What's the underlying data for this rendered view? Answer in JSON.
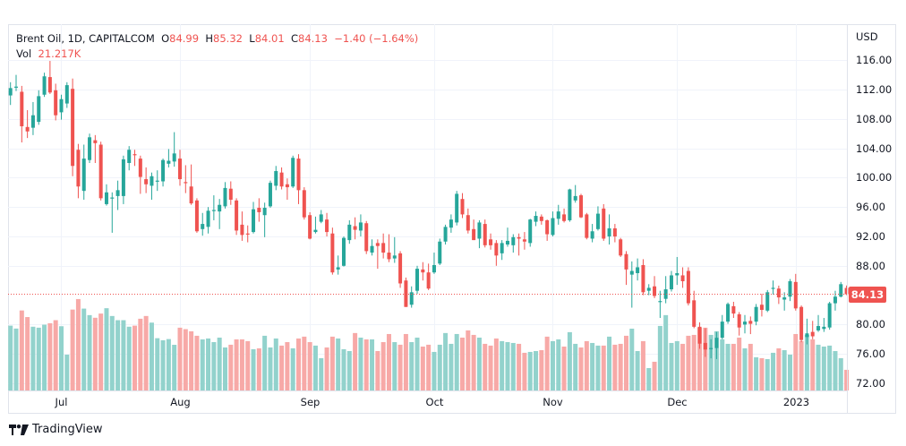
{
  "legend": {
    "symbol": "Brent Oil, 1D, CAPITALCOM",
    "o_label": "O",
    "o_value": "84.99",
    "h_label": "H",
    "h_value": "85.32",
    "l_label": "L",
    "l_value": "84.01",
    "c_label": "C",
    "c_value": "84.13",
    "change": "−1.40 (−1.64%)",
    "vol_label": "Vol",
    "vol_value": "21.217K"
  },
  "brand": "TradingView",
  "colors": {
    "up": "#26a69a",
    "down": "#ef5350",
    "up_vol": "#92d2cc",
    "down_vol": "#f7a9a7",
    "grid": "#f0f3fa"
  },
  "chart_data": {
    "type": "candlestick",
    "title": "Brent Oil, 1D, CAPITALCOM",
    "currency": "USD",
    "ylim": [
      72,
      120
    ],
    "y_ticks": [
      "116.00",
      "112.00",
      "108.00",
      "104.00",
      "100.00",
      "96.00",
      "92.00",
      "88.00",
      "80.00",
      "76.00",
      "72.00"
    ],
    "y_tick_values": [
      116,
      112,
      108,
      104,
      100,
      96,
      92,
      88,
      80,
      76,
      72
    ],
    "x_ticks": [
      {
        "label": "Jul",
        "index": 9
      },
      {
        "label": "Aug",
        "index": 30
      },
      {
        "label": "Sep",
        "index": 53
      },
      {
        "label": "Oct",
        "index": 75
      },
      {
        "label": "Nov",
        "index": 96
      },
      {
        "label": "Dec",
        "index": 118
      },
      {
        "label": "2023",
        "index": 139
      }
    ],
    "last_price": "84.13",
    "grid": true,
    "ohlc": [
      [
        111.2,
        113.0,
        109.9,
        112.2
      ],
      [
        112.3,
        114.0,
        111.8,
        112.4
      ],
      [
        111.7,
        112.5,
        104.8,
        107.0
      ],
      [
        106.9,
        109.2,
        105.4,
        106.3
      ],
      [
        106.8,
        110.3,
        105.8,
        108.5
      ],
      [
        107.6,
        111.9,
        107.2,
        111.1
      ],
      [
        111.3,
        114.3,
        111.0,
        113.8
      ],
      [
        113.7,
        115.9,
        111.4,
        111.6
      ],
      [
        111.9,
        112.8,
        107.8,
        108.5
      ],
      [
        108.9,
        111.3,
        107.9,
        110.7
      ],
      [
        110.1,
        113.0,
        109.5,
        112.6
      ],
      [
        112.1,
        113.5,
        100.2,
        101.6
      ],
      [
        103.8,
        104.6,
        97.2,
        98.8
      ],
      [
        98.2,
        104.5,
        97.0,
        102.6
      ],
      [
        102.4,
        106.0,
        102.0,
        105.5
      ],
      [
        105.1,
        105.8,
        102.0,
        104.7
      ],
      [
        104.5,
        104.9,
        96.9,
        97.2
      ],
      [
        96.4,
        99.1,
        96.2,
        98.0
      ],
      [
        97.3,
        98.0,
        92.5,
        97.3
      ],
      [
        97.5,
        99.6,
        95.6,
        98.3
      ],
      [
        97.5,
        103.0,
        96.4,
        102.5
      ],
      [
        102.0,
        104.3,
        101.0,
        103.8
      ],
      [
        103.2,
        103.8,
        101.6,
        103.1
      ],
      [
        102.6,
        103.0,
        97.8,
        100.1
      ],
      [
        99.8,
        101.4,
        97.9,
        99.1
      ],
      [
        98.9,
        100.7,
        97.0,
        100.2
      ],
      [
        99.6,
        101.0,
        98.2,
        99.6
      ],
      [
        99.5,
        102.6,
        98.8,
        102.4
      ],
      [
        101.9,
        103.9,
        101.4,
        102.3
      ],
      [
        102.2,
        106.2,
        101.5,
        103.3
      ],
      [
        102.6,
        103.8,
        98.9,
        99.8
      ],
      [
        99.4,
        101.7,
        97.9,
        99.3
      ],
      [
        98.8,
        101.8,
        96.3,
        96.5
      ],
      [
        96.9,
        97.2,
        92.5,
        92.7
      ],
      [
        93.0,
        95.2,
        92.1,
        93.7
      ],
      [
        93.3,
        96.0,
        92.4,
        95.5
      ],
      [
        95.6,
        97.6,
        94.2,
        95.6
      ],
      [
        95.4,
        97.1,
        93.0,
        96.3
      ],
      [
        96.1,
        99.4,
        95.8,
        98.6
      ],
      [
        98.5,
        99.5,
        96.3,
        97.0
      ],
      [
        96.9,
        97.2,
        92.2,
        92.8
      ],
      [
        93.6,
        95.4,
        91.4,
        92.2
      ],
      [
        92.4,
        93.5,
        91.2,
        92.3
      ],
      [
        92.6,
        96.7,
        92.4,
        95.7
      ],
      [
        95.9,
        97.2,
        94.0,
        95.3
      ],
      [
        94.9,
        96.6,
        91.9,
        95.9
      ],
      [
        96.1,
        99.6,
        95.9,
        99.3
      ],
      [
        98.9,
        101.6,
        98.3,
        100.9
      ],
      [
        100.7,
        101.4,
        98.4,
        98.8
      ],
      [
        99.1,
        99.9,
        97.0,
        98.7
      ],
      [
        98.8,
        103.0,
        98.6,
        102.7
      ],
      [
        102.6,
        103.2,
        96.4,
        98.3
      ],
      [
        98.3,
        98.7,
        94.3,
        94.6
      ],
      [
        94.9,
        95.3,
        91.6,
        91.7
      ],
      [
        92.6,
        94.7,
        92.4,
        92.9
      ],
      [
        94.0,
        95.6,
        93.8,
        95.0
      ],
      [
        94.3,
        95.2,
        92.0,
        92.6
      ],
      [
        92.4,
        93.2,
        86.8,
        87.1
      ],
      [
        87.5,
        89.4,
        86.8,
        87.8
      ],
      [
        88.0,
        92.0,
        87.9,
        91.8
      ],
      [
        91.5,
        94.2,
        91.0,
        93.6
      ],
      [
        93.4,
        94.6,
        91.6,
        92.9
      ],
      [
        92.8,
        95.0,
        92.0,
        93.9
      ],
      [
        93.8,
        94.1,
        89.6,
        90.0
      ],
      [
        89.8,
        91.6,
        89.4,
        90.7
      ],
      [
        91.1,
        91.6,
        87.6,
        90.7
      ],
      [
        91.1,
        92.4,
        89.0,
        89.8
      ],
      [
        89.8,
        92.3,
        88.5,
        88.9
      ],
      [
        89.0,
        91.9,
        88.4,
        89.4
      ],
      [
        89.7,
        90.0,
        85.0,
        85.6
      ],
      [
        86.0,
        86.4,
        82.4,
        82.4
      ],
      [
        82.7,
        85.2,
        82.3,
        84.4
      ],
      [
        84.6,
        88.0,
        84.2,
        87.6
      ],
      [
        87.5,
        88.5,
        86.0,
        87.1
      ],
      [
        87.1,
        88.3,
        84.7,
        84.9
      ],
      [
        87.1,
        89.8,
        86.9,
        88.1
      ],
      [
        88.3,
        91.7,
        88.1,
        91.3
      ],
      [
        91.3,
        93.6,
        90.9,
        93.3
      ],
      [
        93.2,
        95.0,
        92.5,
        94.3
      ],
      [
        93.9,
        98.2,
        93.5,
        97.8
      ],
      [
        97.1,
        97.9,
        94.5,
        95.0
      ],
      [
        94.9,
        95.8,
        92.4,
        92.8
      ],
      [
        93.0,
        94.3,
        91.5,
        91.5
      ],
      [
        91.7,
        94.2,
        90.4,
        93.9
      ],
      [
        93.7,
        94.3,
        90.5,
        90.8
      ],
      [
        91.6,
        92.4,
        90.2,
        90.8
      ],
      [
        91.1,
        91.5,
        88.0,
        89.4
      ],
      [
        89.7,
        91.5,
        88.8,
        91.1
      ],
      [
        90.9,
        93.2,
        90.6,
        91.4
      ],
      [
        90.8,
        92.3,
        89.8,
        91.9
      ],
      [
        91.9,
        92.4,
        89.4,
        91.7
      ],
      [
        91.6,
        92.6,
        90.2,
        91.3
      ],
      [
        91.1,
        94.4,
        90.6,
        94.3
      ],
      [
        94.0,
        95.4,
        93.4,
        94.8
      ],
      [
        94.7,
        95.0,
        93.6,
        94.1
      ],
      [
        94.2,
        94.3,
        91.4,
        92.3
      ],
      [
        92.2,
        95.4,
        92.0,
        94.5
      ],
      [
        94.4,
        96.3,
        93.6,
        95.4
      ],
      [
        95.0,
        95.8,
        93.9,
        94.1
      ],
      [
        94.2,
        98.5,
        94.0,
        98.4
      ],
      [
        96.9,
        99.0,
        96.6,
        97.5
      ],
      [
        97.6,
        97.8,
        94.5,
        94.6
      ],
      [
        95.0,
        95.2,
        91.6,
        91.8
      ],
      [
        91.7,
        93.7,
        91.2,
        92.7
      ],
      [
        93.0,
        96.1,
        92.8,
        95.1
      ],
      [
        95.8,
        96.4,
        91.4,
        91.7
      ],
      [
        92.0,
        95.0,
        90.9,
        93.1
      ],
      [
        93.1,
        93.7,
        91.2,
        92.0
      ],
      [
        91.6,
        91.8,
        89.2,
        89.4
      ],
      [
        89.6,
        90.0,
        85.4,
        87.5
      ],
      [
        86.8,
        88.6,
        82.3,
        87.3
      ],
      [
        87.0,
        89.0,
        86.0,
        87.8
      ],
      [
        88.1,
        88.9,
        84.0,
        84.4
      ],
      [
        84.6,
        85.5,
        84.0,
        85.0
      ],
      [
        85.2,
        86.6,
        83.6,
        83.9
      ],
      [
        83.1,
        84.6,
        80.9,
        83.2
      ],
      [
        83.5,
        86.6,
        82.9,
        84.8
      ],
      [
        84.8,
        87.3,
        84.5,
        86.7
      ],
      [
        86.7,
        89.2,
        85.4,
        87.0
      ],
      [
        86.7,
        87.8,
        85.0,
        85.9
      ],
      [
        87.3,
        87.8,
        82.6,
        82.9
      ],
      [
        83.3,
        84.6,
        79.5,
        79.7
      ],
      [
        79.7,
        80.3,
        76.7,
        77.4
      ],
      [
        77.5,
        79.5,
        75.6,
        76.6
      ],
      [
        76.8,
        78.0,
        75.4,
        76.8
      ],
      [
        76.8,
        79.0,
        75.3,
        78.2
      ],
      [
        78.2,
        81.3,
        78.0,
        80.4
      ],
      [
        80.4,
        83.0,
        80.1,
        82.8
      ],
      [
        82.5,
        83.1,
        80.9,
        81.5
      ],
      [
        81.4,
        81.7,
        78.5,
        79.6
      ],
      [
        80.0,
        81.3,
        78.8,
        80.4
      ],
      [
        80.5,
        81.1,
        78.7,
        80.1
      ],
      [
        80.4,
        82.8,
        79.9,
        82.4
      ],
      [
        82.7,
        84.2,
        81.1,
        82.0
      ],
      [
        81.9,
        84.7,
        81.7,
        84.4
      ],
      [
        84.9,
        86.0,
        84.1,
        85.0
      ],
      [
        84.9,
        85.3,
        82.8,
        83.7
      ],
      [
        83.4,
        84.4,
        81.9,
        83.7
      ],
      [
        83.8,
        86.2,
        83.2,
        85.9
      ],
      [
        85.8,
        86.9,
        81.9,
        82.2
      ],
      [
        82.4,
        82.6,
        77.6,
        77.9
      ],
      [
        78.3,
        80.8,
        77.3,
        78.8
      ],
      [
        79.0,
        80.5,
        78.0,
        78.4
      ],
      [
        79.2,
        81.3,
        79.0,
        79.8
      ],
      [
        79.4,
        80.9,
        79.0,
        79.7
      ],
      [
        79.6,
        83.1,
        79.3,
        82.9
      ],
      [
        82.9,
        84.6,
        81.9,
        83.8
      ],
      [
        83.8,
        85.8,
        83.7,
        85.5
      ],
      [
        84.99,
        85.32,
        84.01,
        84.13
      ]
    ],
    "volume_k": [
      66.6,
      63.6,
      82.2,
      75.4,
      65.5,
      64.5,
      67.6,
      69.1,
      72.2,
      66.0,
      36.8,
      83.1,
      93.9,
      84.1,
      77.4,
      74.7,
      79.0,
      84.5,
      76.5,
      72.2,
      72.2,
      65.5,
      66.6,
      73.7,
      76.5,
      69.7,
      53.7,
      51.6,
      52.8,
      46.9,
      64.5,
      63.0,
      60.8,
      56.2,
      52.5,
      53.4,
      49.7,
      54.3,
      44.2,
      47.0,
      52.5,
      52.5,
      50.7,
      42.4,
      43.3,
      56.2,
      44.2,
      53.4,
      46.1,
      49.7,
      43.3,
      53.4,
      55.3,
      49.7,
      46.1,
      33.2,
      44.2,
      55.3,
      53.4,
      42.4,
      40.5,
      59.0,
      54.3,
      52.5,
      52.5,
      40.5,
      49.7,
      58.0,
      49.7,
      47.0,
      58.0,
      49.7,
      54.3,
      45.1,
      47.0,
      39.6,
      47.0,
      59.0,
      47.9,
      58.0,
      54.3,
      61.7,
      57.1,
      54.3,
      47.9,
      46.1,
      53.4,
      50.7,
      49.7,
      48.8,
      47.9,
      38.7,
      39.6,
      40.5,
      41.4,
      55.3,
      50.7,
      52.5,
      45.1,
      59.9,
      47.9,
      44.2,
      50.7,
      48.8,
      46.1,
      46.1,
      55.3,
      47.0,
      47.9,
      56.2,
      63.5,
      40.5,
      50.7,
      23.0,
      29.5,
      66.3,
      77.4,
      48.8,
      50.7,
      47.9,
      56.2,
      57.1,
      64.5,
      64.5,
      57.1,
      60.8,
      52.5,
      47.9,
      47.9,
      54.3,
      43.3,
      47.9,
      34.1,
      33.2,
      32.2,
      38.7,
      43.3,
      41.4,
      36.8,
      58.0,
      50.7,
      57.1,
      52.5,
      47.0,
      45.1,
      46.1,
      40.5,
      33.2,
      21.217
    ]
  }
}
